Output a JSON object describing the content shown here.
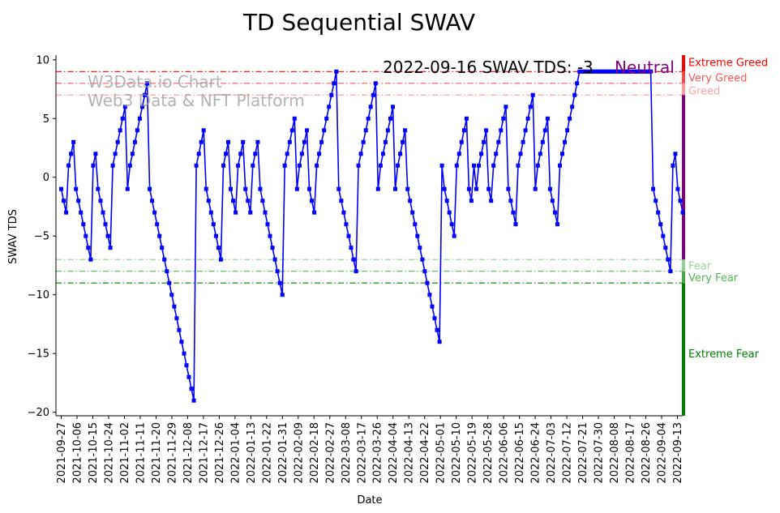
{
  "chart_data": {
    "type": "line",
    "title": "TD Sequential SWAV",
    "xlabel": "Date",
    "ylabel": "SWAV TDS",
    "ylim": [
      -20.3,
      10.4
    ],
    "yticks": [
      10,
      5,
      0,
      -5,
      -10,
      -15,
      -20
    ],
    "xticks": [
      "2021-09-27",
      "2021-10-06",
      "2021-10-15",
      "2021-10-24",
      "2021-11-02",
      "2021-11-11",
      "2021-11-20",
      "2021-11-29",
      "2021-12-08",
      "2021-12-17",
      "2021-12-26",
      "2022-01-04",
      "2022-01-13",
      "2022-01-22",
      "2022-01-31",
      "2022-02-09",
      "2022-02-18",
      "2022-02-27",
      "2022-03-08",
      "2022-03-17",
      "2022-03-26",
      "2022-04-04",
      "2022-04-13",
      "2022-04-22",
      "2022-05-01",
      "2022-05-10",
      "2022-05-19",
      "2022-05-28",
      "2022-06-06",
      "2022-06-15",
      "2022-06-24",
      "2022-07-03",
      "2022-07-12",
      "2022-07-21",
      "2022-07-30",
      "2022-08-08",
      "2022-08-17",
      "2022-08-26",
      "2022-09-04",
      "2022-09-13"
    ],
    "x_start": "2021-09-24",
    "x_end": "2022-09-16",
    "annotation": "2022-09-16 SWAV TDS: -3",
    "status_label": "Neutral",
    "status_color": "#800080",
    "line_color": "#0000ff",
    "levels": [
      {
        "name": "Extreme Greed",
        "value": 9,
        "color": "#ff0000",
        "alpha": 1.0
      },
      {
        "name": "Very Greed",
        "value": 8,
        "color": "#ff4444",
        "alpha": 0.9
      },
      {
        "name": "Greed",
        "value": 7,
        "color": "#ff9999",
        "alpha": 0.9
      },
      {
        "name": "Fear",
        "value": -7,
        "color": "#90d090",
        "alpha": 0.9
      },
      {
        "name": "Very Fear",
        "value": -8,
        "color": "#44aa44",
        "alpha": 0.9
      },
      {
        "name": "Extreme Fear",
        "value": -9,
        "color": "#008000",
        "alpha": 1.0
      }
    ],
    "band": [
      {
        "from": 10.4,
        "to": 9,
        "color": "#ff0000"
      },
      {
        "from": 9,
        "to": 8,
        "color": "#ff4444"
      },
      {
        "from": 8,
        "to": 7,
        "color": "#ff9999"
      },
      {
        "from": 7,
        "to": -7,
        "color": "#800080"
      },
      {
        "from": -7,
        "to": -8,
        "color": "#90d090"
      },
      {
        "from": -8,
        "to": -9,
        "color": "#44aa44"
      },
      {
        "from": -9,
        "to": -20.3,
        "color": "#008000"
      }
    ],
    "values": [
      -1,
      -2,
      -3,
      1,
      2,
      3,
      -1,
      -2,
      -3,
      -4,
      -5,
      -6,
      -7,
      1,
      2,
      -1,
      -2,
      -3,
      -4,
      -5,
      -6,
      1,
      2,
      3,
      4,
      5,
      6,
      -1,
      1,
      2,
      3,
      4,
      5,
      6,
      7,
      8,
      -1,
      -2,
      -3,
      -4,
      -5,
      -6,
      -7,
      -8,
      -9,
      -10,
      -11,
      -12,
      -13,
      -14,
      -15,
      -16,
      -17,
      -18,
      -19,
      1,
      2,
      3,
      4,
      -1,
      -2,
      -3,
      -4,
      -5,
      -6,
      -7,
      1,
      2,
      3,
      -1,
      -2,
      -3,
      1,
      2,
      3,
      -1,
      -2,
      -3,
      1,
      2,
      3,
      -1,
      -2,
      -3,
      -4,
      -5,
      -6,
      -7,
      -8,
      -9,
      -10,
      1,
      2,
      3,
      4,
      5,
      -1,
      1,
      2,
      3,
      4,
      -1,
      -2,
      -3,
      1,
      2,
      3,
      4,
      5,
      6,
      7,
      8,
      9,
      -1,
      -2,
      -3,
      -4,
      -5,
      -6,
      -7,
      -8,
      1,
      2,
      3,
      4,
      5,
      6,
      7,
      8,
      -1,
      1,
      2,
      3,
      4,
      5,
      6,
      -1,
      1,
      2,
      3,
      4,
      -1,
      -2,
      -3,
      -4,
      -5,
      -6,
      -7,
      -8,
      -9,
      -10,
      -11,
      -12,
      -13,
      -14,
      1,
      -1,
      -2,
      -3,
      -4,
      -5,
      1,
      2,
      3,
      4,
      5,
      -1,
      -2,
      1,
      -1,
      1,
      2,
      3,
      4,
      -1,
      -2,
      1,
      2,
      3,
      4,
      5,
      6,
      -1,
      -2,
      -3,
      -4,
      1,
      2,
      3,
      4,
      5,
      6,
      7,
      -1,
      1,
      2,
      3,
      4,
      5,
      -1,
      -2,
      -3,
      -4,
      1,
      2,
      3,
      4,
      5,
      6,
      7,
      8,
      9,
      9,
      9,
      9,
      9,
      9,
      9,
      9,
      9,
      9,
      9,
      9,
      9,
      9,
      9,
      9,
      9,
      9,
      9,
      9,
      9,
      9,
      9,
      9,
      9,
      9,
      9,
      9,
      9,
      9,
      -1,
      -2,
      -3,
      -4,
      -5,
      -6,
      -7,
      -8,
      1,
      2,
      -1,
      -2,
      -3
    ]
  },
  "watermark": {
    "line1": "W3Data.io Chart",
    "line2": "Web3 Data & NFT Platform"
  }
}
